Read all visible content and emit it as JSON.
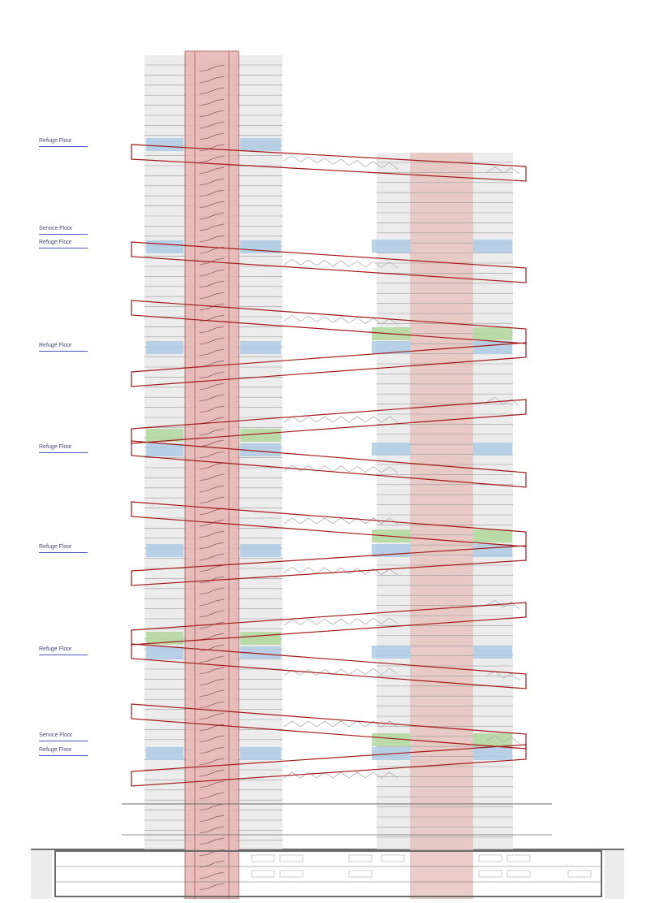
{
  "figure": {
    "type": "building-section-diagram",
    "colors": {
      "refuge_floor": "#b3cde6",
      "service_floor": "#b5d8a0",
      "core": "#e6b9b5",
      "core_edge": "#b06060",
      "tower_shade": "#e2e2e2",
      "bracing": "#a31818",
      "label": "#4a4a7a",
      "label_rule": "#4a55c8"
    }
  },
  "labels": [
    {
      "text": "Refuge Floor"
    },
    {
      "text": "Service Floor"
    },
    {
      "text": "Refuge Floor"
    },
    {
      "text": "Refuge Floor"
    },
    {
      "text": "Refuge Floor"
    },
    {
      "text": "Refuge Floor"
    },
    {
      "text": "Refuge Floor"
    },
    {
      "text": "Service Floor"
    },
    {
      "text": "Refuge Floor"
    }
  ]
}
